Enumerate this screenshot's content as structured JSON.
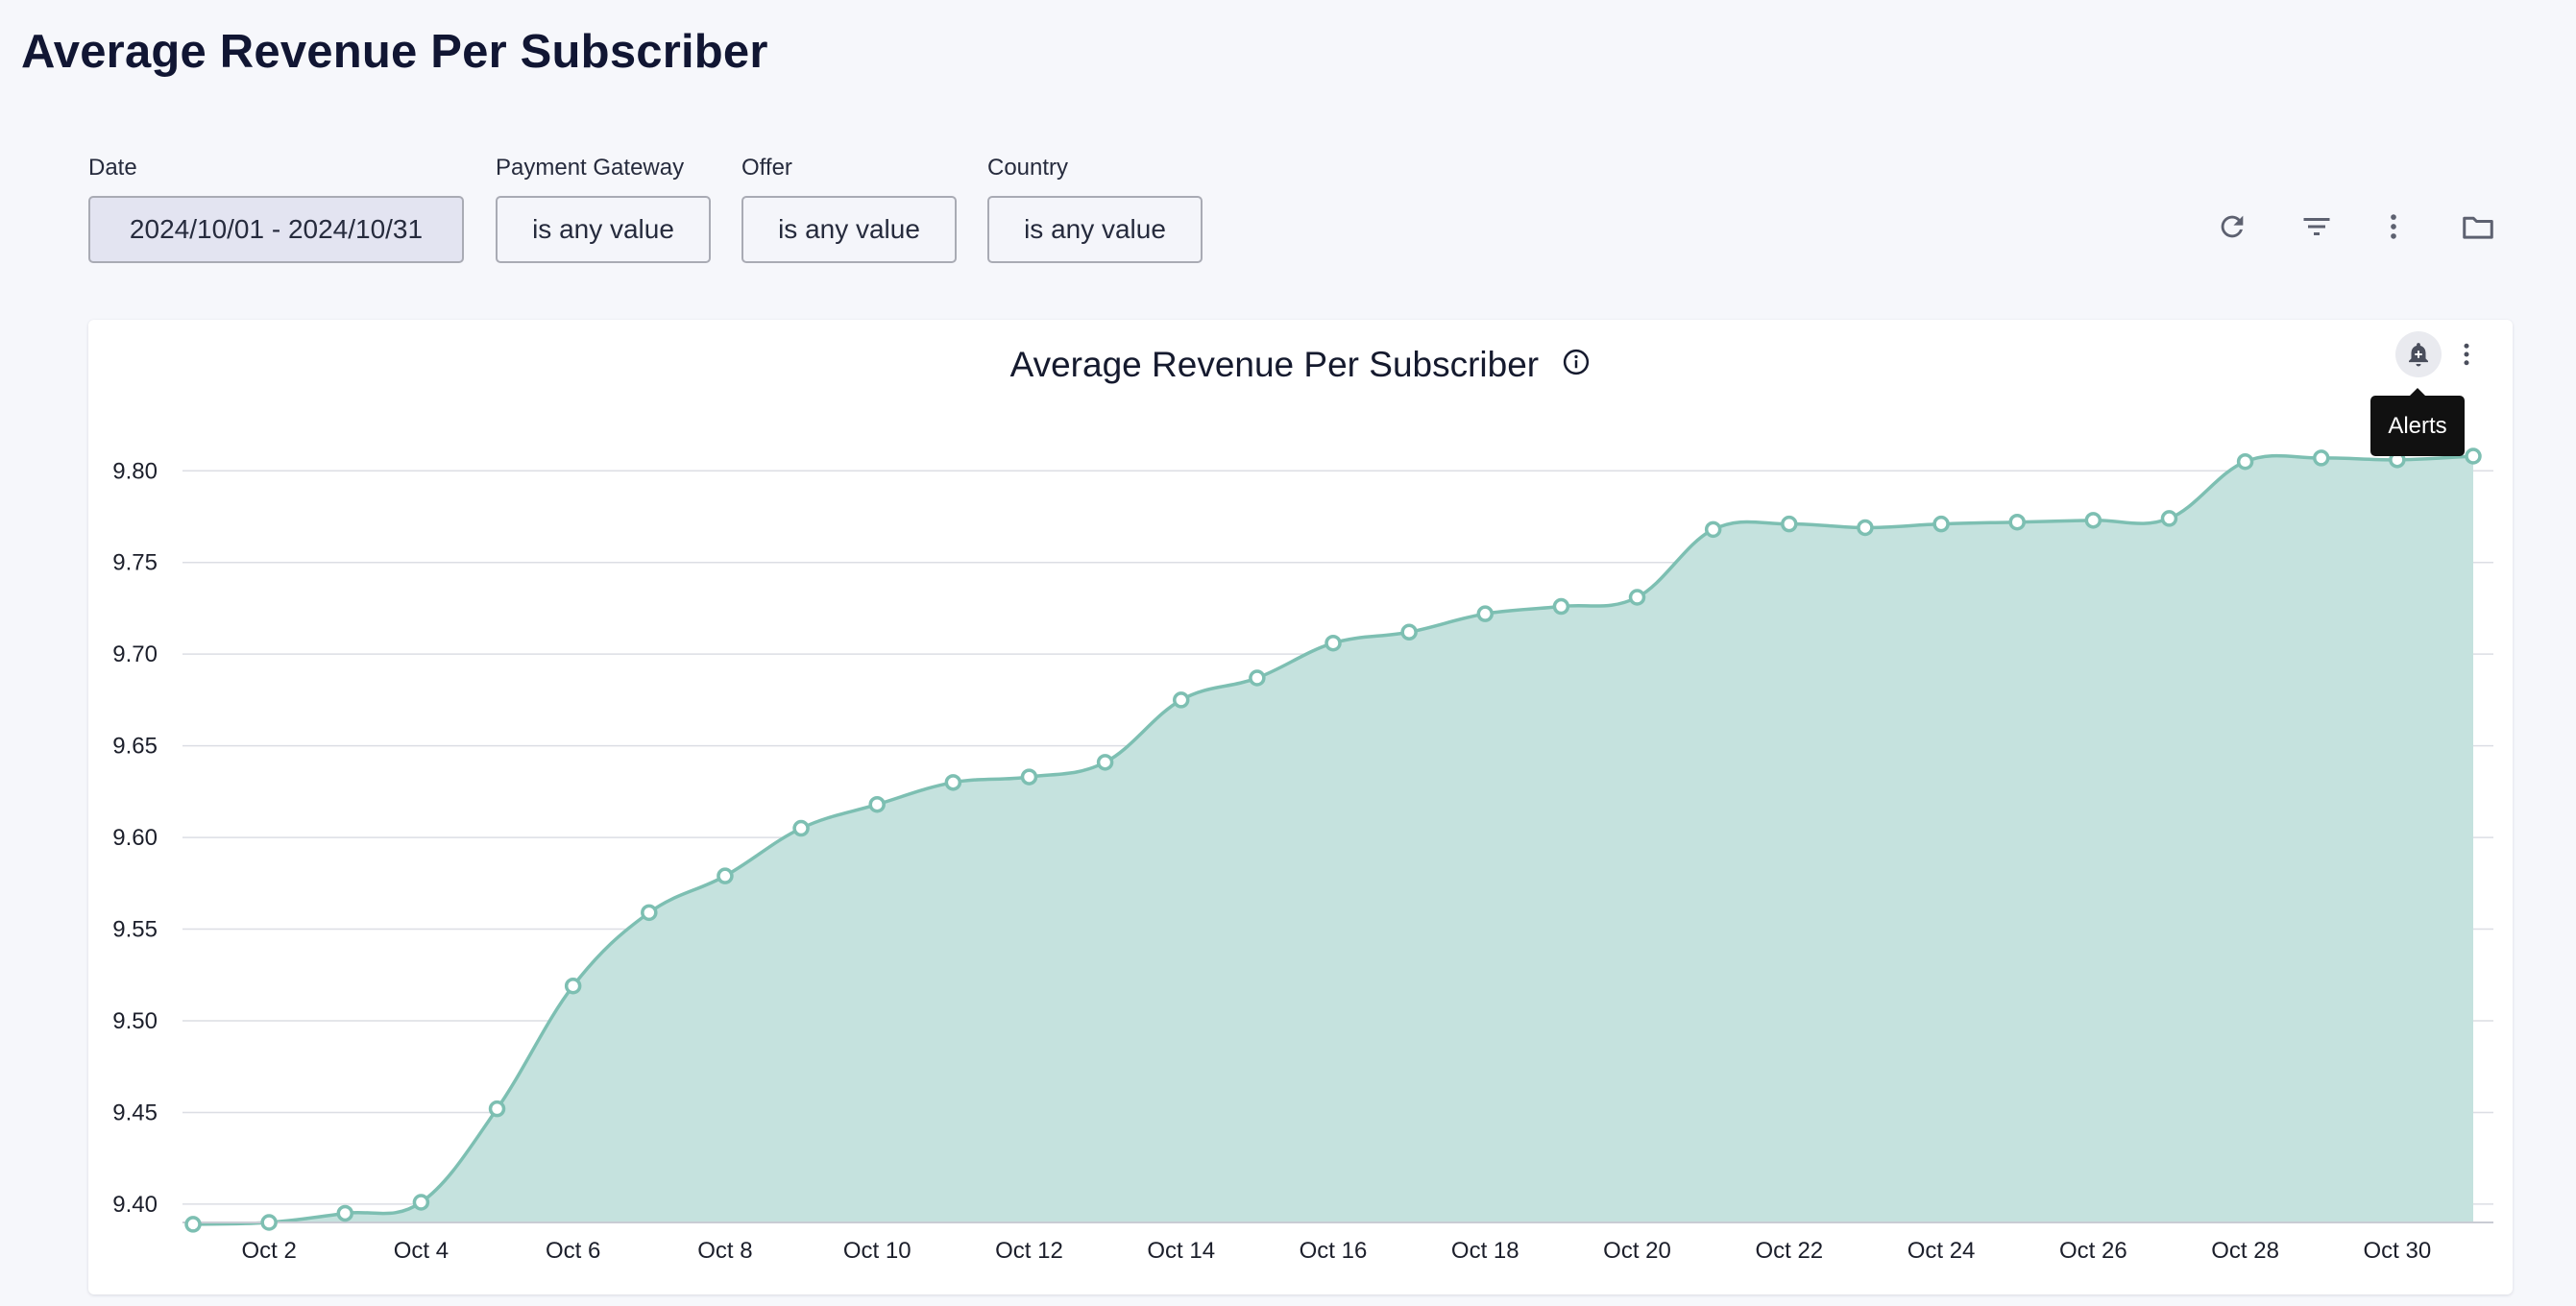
{
  "page": {
    "title": "Average Revenue Per Subscriber"
  },
  "filters": {
    "date": {
      "label": "Date",
      "value": "2024/10/01 - 2024/10/31"
    },
    "payment_gateway": {
      "label": "Payment Gateway",
      "value": "is any value"
    },
    "offer": {
      "label": "Offer",
      "value": "is any value"
    },
    "country": {
      "label": "Country",
      "value": "is any value"
    }
  },
  "toolbar": {
    "icons": [
      "refresh-icon",
      "filter-icon",
      "more-vertical-icon",
      "folder-icon"
    ]
  },
  "card": {
    "title": "Average Revenue Per Subscriber",
    "tooltip": "Alerts",
    "icons": [
      "info-icon",
      "add-alert-bell-icon",
      "more-vertical-icon"
    ]
  },
  "colors": {
    "line": "#7dbfb2",
    "area": "#c5e2de",
    "grid": "#dcdee4",
    "title": "#111633"
  },
  "chart_data": {
    "type": "area",
    "title": "Average Revenue Per Subscriber",
    "xlabel": "",
    "ylabel": "",
    "x": [
      "Oct 1",
      "Oct 2",
      "Oct 3",
      "Oct 4",
      "Oct 5",
      "Oct 6",
      "Oct 7",
      "Oct 8",
      "Oct 9",
      "Oct 10",
      "Oct 11",
      "Oct 12",
      "Oct 13",
      "Oct 14",
      "Oct 15",
      "Oct 16",
      "Oct 17",
      "Oct 18",
      "Oct 19",
      "Oct 20",
      "Oct 21",
      "Oct 22",
      "Oct 23",
      "Oct 24",
      "Oct 25",
      "Oct 26",
      "Oct 27",
      "Oct 28",
      "Oct 29",
      "Oct 30",
      "Oct 31"
    ],
    "values": [
      9.389,
      9.39,
      9.395,
      9.401,
      9.452,
      9.519,
      9.559,
      9.579,
      9.605,
      9.618,
      9.63,
      9.633,
      9.641,
      9.675,
      9.687,
      9.706,
      9.712,
      9.722,
      9.726,
      9.731,
      9.768,
      9.771,
      9.769,
      9.771,
      9.772,
      9.773,
      9.774,
      9.805,
      9.807,
      9.806,
      9.808
    ],
    "x_tick_labels": [
      "Oct 2",
      "Oct 4",
      "Oct 6",
      "Oct 8",
      "Oct 10",
      "Oct 12",
      "Oct 14",
      "Oct 16",
      "Oct 18",
      "Oct 20",
      "Oct 22",
      "Oct 24",
      "Oct 26",
      "Oct 28",
      "Oct 30"
    ],
    "y_tick_labels": [
      "9.80",
      "9.75",
      "9.70",
      "9.65",
      "9.60",
      "9.55",
      "9.50",
      "9.45",
      "9.40"
    ],
    "y_ticks": [
      9.8,
      9.75,
      9.7,
      9.65,
      9.6,
      9.55,
      9.5,
      9.45,
      9.4
    ],
    "ylim": [
      9.39,
      9.83
    ],
    "grid": true,
    "legend": "none",
    "markers": "hollow-circle"
  }
}
